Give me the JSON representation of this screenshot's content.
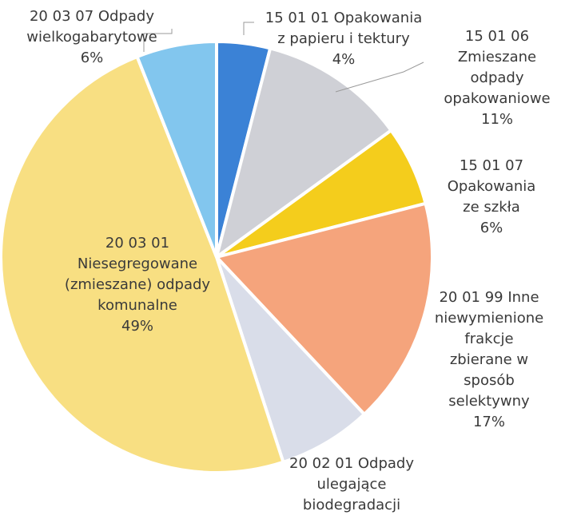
{
  "chart_data": {
    "type": "pie",
    "categories": [
      "15 01 01 Opakowania\nz papieru i tektury",
      "15 01 06 Zmieszane\nodpady\nopakowaniowe",
      "15 01 07 Opakowania\nze szkła",
      "20 01 99 Inne\nniewymienione\nfrakcje zbierane w\nsposób selektywny",
      "20 02 01 Odpady\nulegające\nbiodegradacji",
      "20 03 01\nNiesegregowane\n(zmieszane) odpady\nkomunalne",
      "20 03 07 Odpady\nwielkogabarytowe"
    ],
    "values": [
      4,
      11,
      6,
      17,
      7,
      49,
      6
    ],
    "value_labels": [
      "4%",
      "11%",
      "6%",
      "17%",
      null,
      "49%",
      "6%"
    ],
    "colors": [
      "#3b82d6",
      "#cfd0d6",
      "#f4cd1c",
      "#f5a47c",
      "#d9dde9",
      "#f8df82",
      "#82c6ee"
    ]
  }
}
